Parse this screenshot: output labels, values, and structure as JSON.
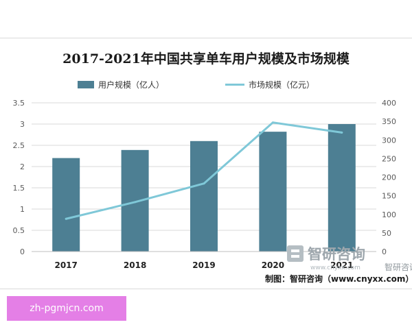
{
  "chart_data": {
    "type": "bar",
    "title": "2017-2021年中国共享单车用户规模及市场规模",
    "categories": [
      "2017",
      "2018",
      "2019",
      "2020",
      "2021"
    ],
    "series": [
      {
        "name": "用户规模（亿人）",
        "type": "bar",
        "axis": "left",
        "values": [
          2.2,
          2.39,
          2.6,
          2.82,
          3.0
        ]
      },
      {
        "name": "市场规模（亿元）",
        "type": "line",
        "axis": "right",
        "values": [
          88,
          133,
          183,
          347,
          320
        ]
      }
    ],
    "y_left": {
      "min": 0,
      "max": 3.5,
      "ticks": [
        "0",
        "0.5",
        "1",
        "1.5",
        "2",
        "2.5",
        "3",
        "3.5"
      ]
    },
    "y_right": {
      "min": 0,
      "max": 400,
      "ticks": [
        "0",
        "50",
        "100",
        "150",
        "200",
        "250",
        "300",
        "350",
        "400"
      ]
    },
    "grid": "horizontal",
    "legend": "top",
    "colors": {
      "bar": "#4d7f93",
      "line": "#7fc8d8"
    }
  },
  "source": "制图：智研咨询（www.cnyxx.com）",
  "watermark": {
    "brand": "智研咨询",
    "domain": "www.chyxx.com"
  },
  "badge": {
    "text": "zh-pgmjcn.com"
  }
}
